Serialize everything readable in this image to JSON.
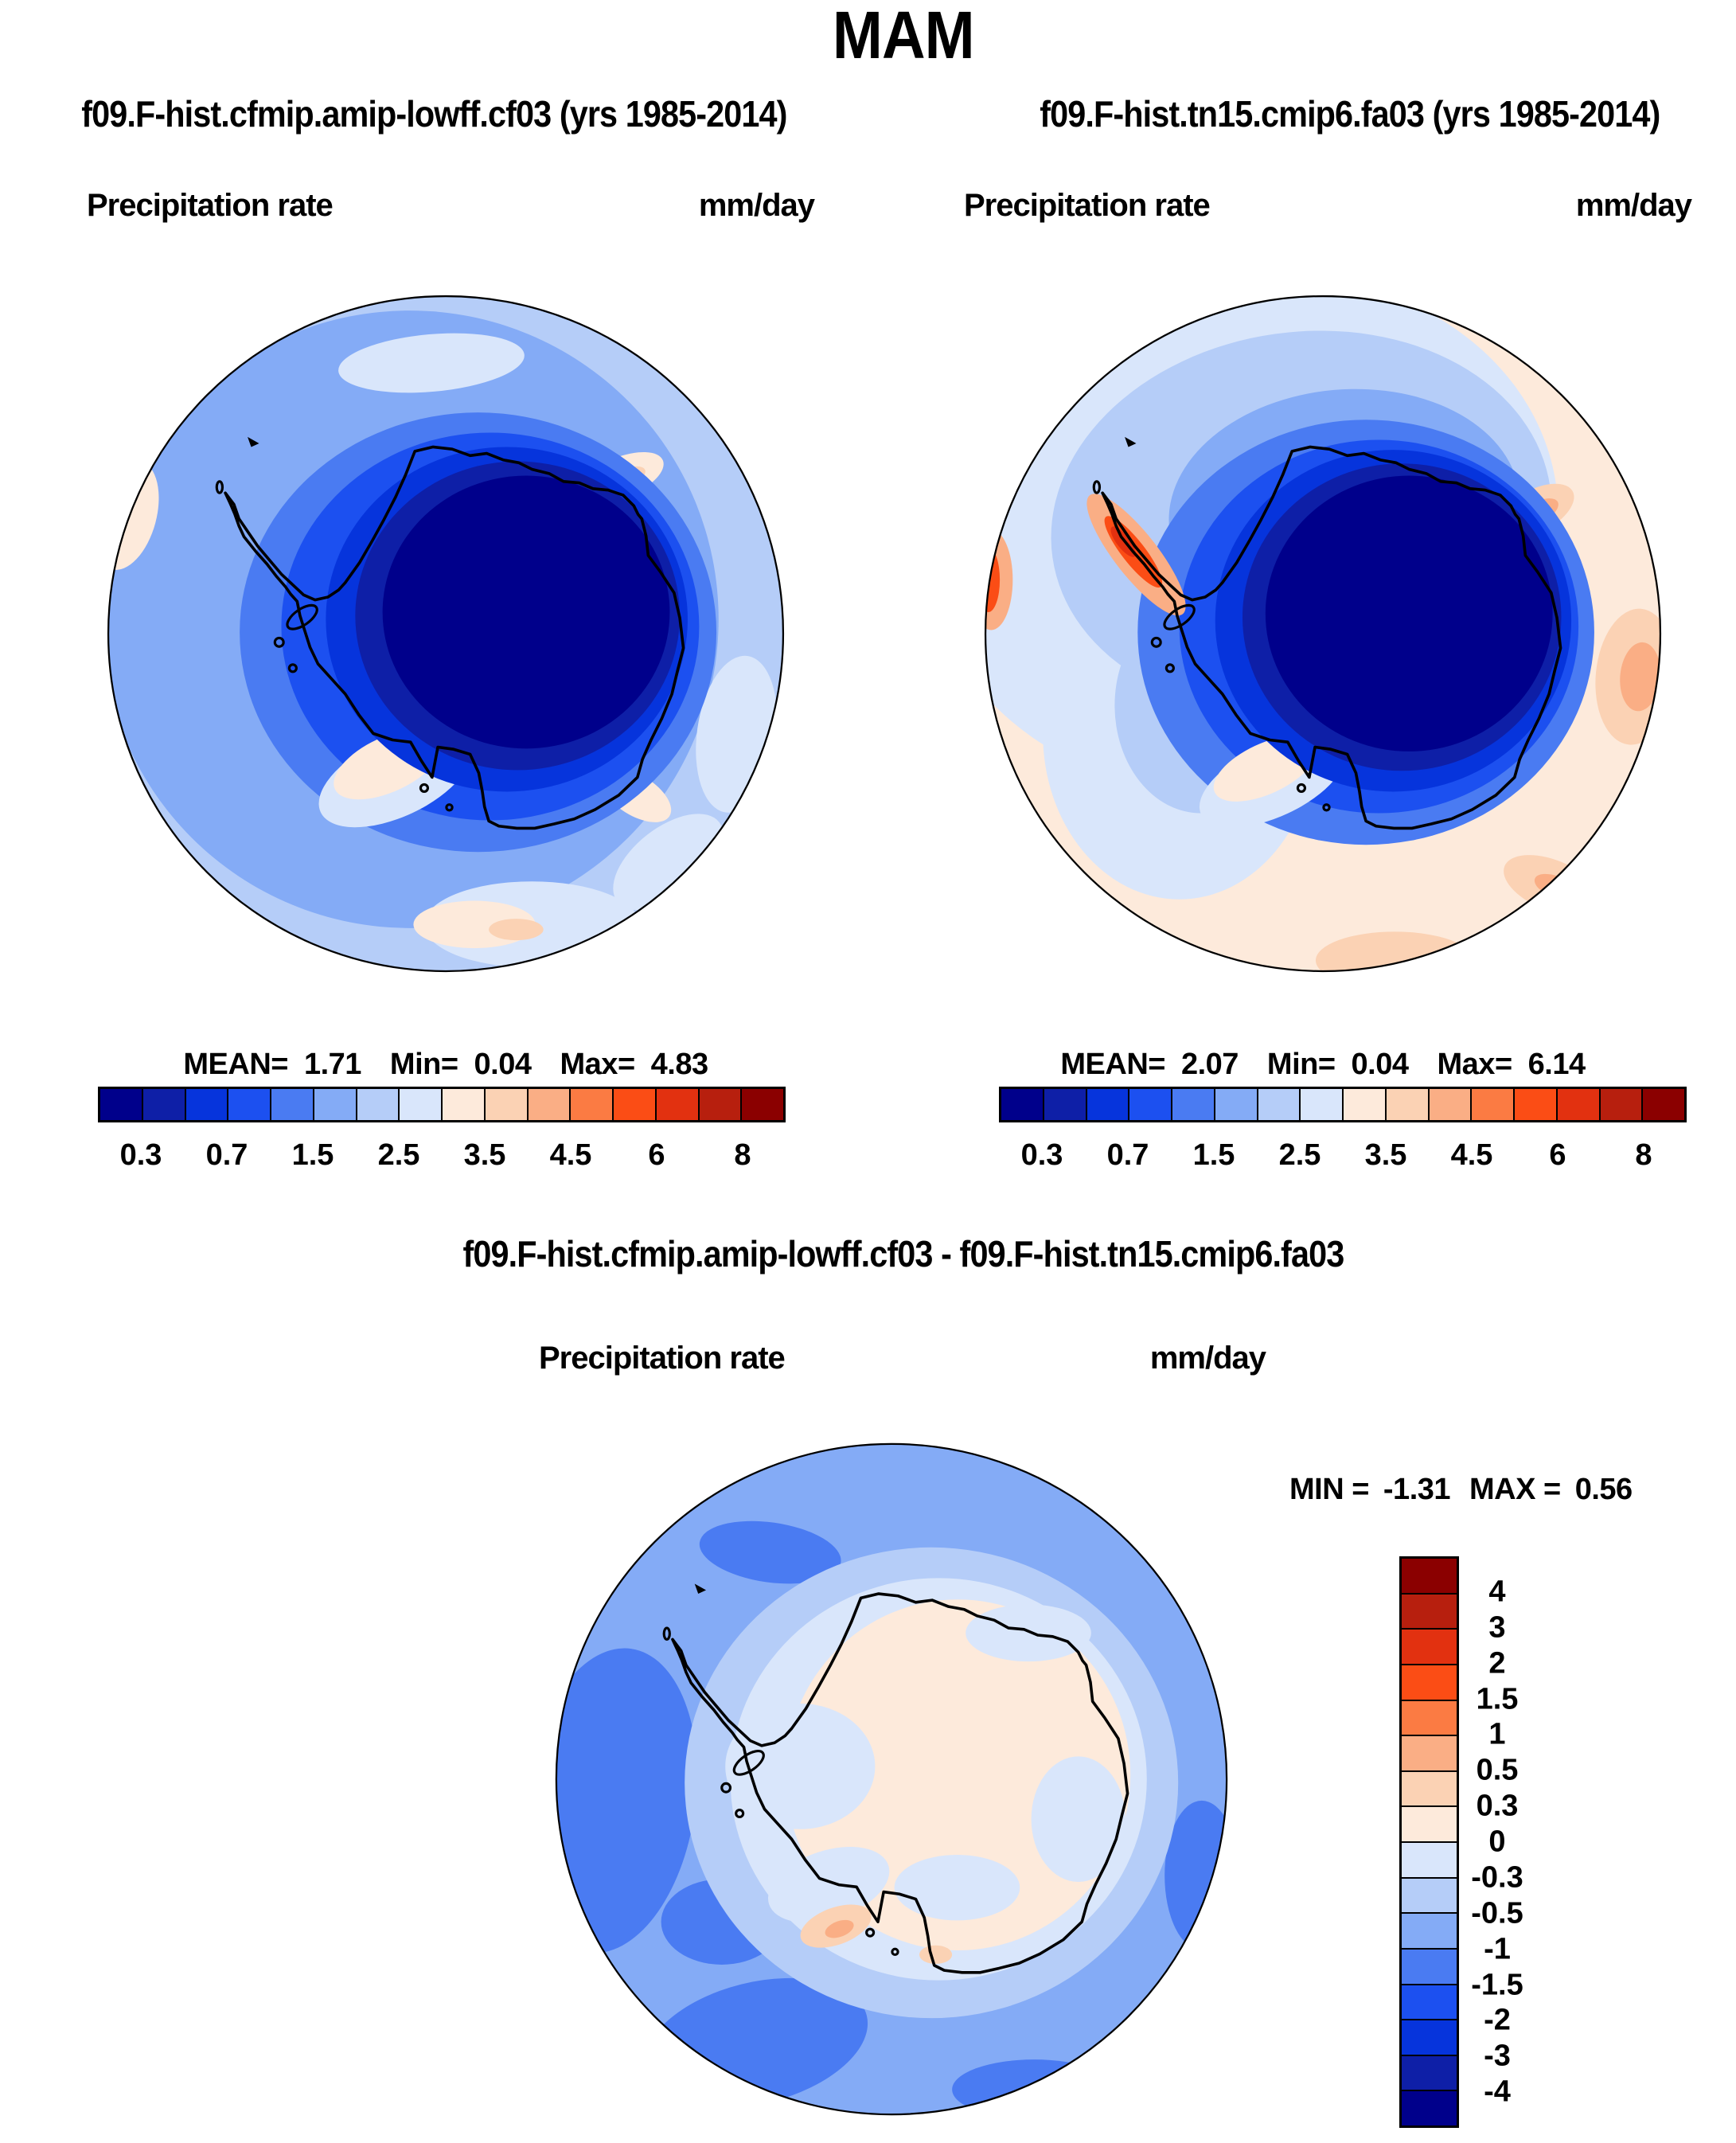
{
  "title": "MAM",
  "palette": [
    "#00008B",
    "#0E1FA7",
    "#0634DC",
    "#1C50F0",
    "#4A7BF2",
    "#84ABF6",
    "#B5CDF8",
    "#D9E6FB",
    "#FDEADB",
    "#FBD2B4",
    "#FAAE85",
    "#FB7B43",
    "#FB4D15",
    "#E23110",
    "#B71F0E",
    "#8B0000"
  ],
  "panel_a": {
    "subtitle": "f09.F-hist.cfmip.amip-lowff.cf03 (yrs 1985-2014)",
    "field_label": "Precipitation rate",
    "units": "mm/day",
    "stats": {
      "mean_label": "MEAN=",
      "mean": "1.71",
      "min_label": "Min=",
      "min": "0.04",
      "max_label": "Max=",
      "max": "4.83"
    },
    "ticks": [
      "0.3",
      "0.7",
      "1.5",
      "2.5",
      "3.5",
      "4.5",
      "6",
      "8"
    ]
  },
  "panel_b": {
    "subtitle": "f09.F-hist.tn15.cmip6.fa03 (yrs 1985-2014)",
    "field_label": "Precipitation rate",
    "units": "mm/day",
    "stats": {
      "mean_label": "MEAN=",
      "mean": "2.07",
      "min_label": "Min=",
      "min": "0.04",
      "max_label": "Max=",
      "max": "6.14"
    },
    "ticks": [
      "0.3",
      "0.7",
      "1.5",
      "2.5",
      "3.5",
      "4.5",
      "6",
      "8"
    ]
  },
  "panel_diff": {
    "subtitle": "f09.F-hist.cfmip.amip-lowff.cf03 - f09.F-hist.tn15.cmip6.fa03",
    "field_label": "Precipitation rate",
    "units": "mm/day",
    "stats": {
      "min_label": "MIN =",
      "min": "-1.31",
      "max_label": "MAX =",
      "max": "0.56"
    },
    "ticks": [
      "4",
      "3",
      "2",
      "1.5",
      "1",
      "0.5",
      "0.3",
      "0",
      "-0.3",
      "-0.5",
      "-1",
      "-1.5",
      "-2",
      "-3",
      "-4"
    ]
  },
  "chart_data": [
    {
      "type": "filled_contour_map",
      "projection": "polar_stereographic_south",
      "region": "Antarctica / Southern Ocean",
      "season": "MAM",
      "title": "f09.F-hist.cfmip.amip-lowff.cf03 (yrs 1985-2014)",
      "variable": "Precipitation rate",
      "units": "mm/day",
      "mean": 1.71,
      "min": 0.04,
      "max": 4.83,
      "contour_levels": [
        0.3,
        0.5,
        0.7,
        1,
        1.5,
        2,
        2.5,
        3,
        3.5,
        4,
        4.5,
        5,
        6,
        7,
        8
      ],
      "labeled_levels": [
        0.3,
        0.7,
        1.5,
        2.5,
        3.5,
        4.5,
        6,
        8
      ],
      "colorbar_position": "bottom-horizontal",
      "n_colors": 16
    },
    {
      "type": "filled_contour_map",
      "projection": "polar_stereographic_south",
      "region": "Antarctica / Southern Ocean",
      "season": "MAM",
      "title": "f09.F-hist.tn15.cmip6.fa03 (yrs 1985-2014)",
      "variable": "Precipitation rate",
      "units": "mm/day",
      "mean": 2.07,
      "min": 0.04,
      "max": 6.14,
      "contour_levels": [
        0.3,
        0.5,
        0.7,
        1,
        1.5,
        2,
        2.5,
        3,
        3.5,
        4,
        4.5,
        5,
        6,
        7,
        8
      ],
      "labeled_levels": [
        0.3,
        0.7,
        1.5,
        2.5,
        3.5,
        4.5,
        6,
        8
      ],
      "colorbar_position": "bottom-horizontal",
      "n_colors": 16
    },
    {
      "type": "filled_contour_map",
      "projection": "polar_stereographic_south",
      "region": "Antarctica / Southern Ocean",
      "season": "MAM",
      "title": "f09.F-hist.cfmip.amip-lowff.cf03 - f09.F-hist.tn15.cmip6.fa03",
      "variable": "Precipitation rate difference",
      "units": "mm/day",
      "min": -1.31,
      "max": 0.56,
      "contour_levels": [
        -4,
        -3,
        -2,
        -1.5,
        -1,
        -0.5,
        -0.3,
        0,
        0.3,
        0.5,
        1,
        1.5,
        2,
        3,
        4
      ],
      "labeled_levels": [
        -4,
        -3,
        -2,
        -1.5,
        -1,
        -0.5,
        -0.3,
        0,
        0.3,
        0.5,
        1,
        1.5,
        2,
        3,
        4
      ],
      "colorbar_position": "right-vertical",
      "n_colors": 16
    }
  ]
}
